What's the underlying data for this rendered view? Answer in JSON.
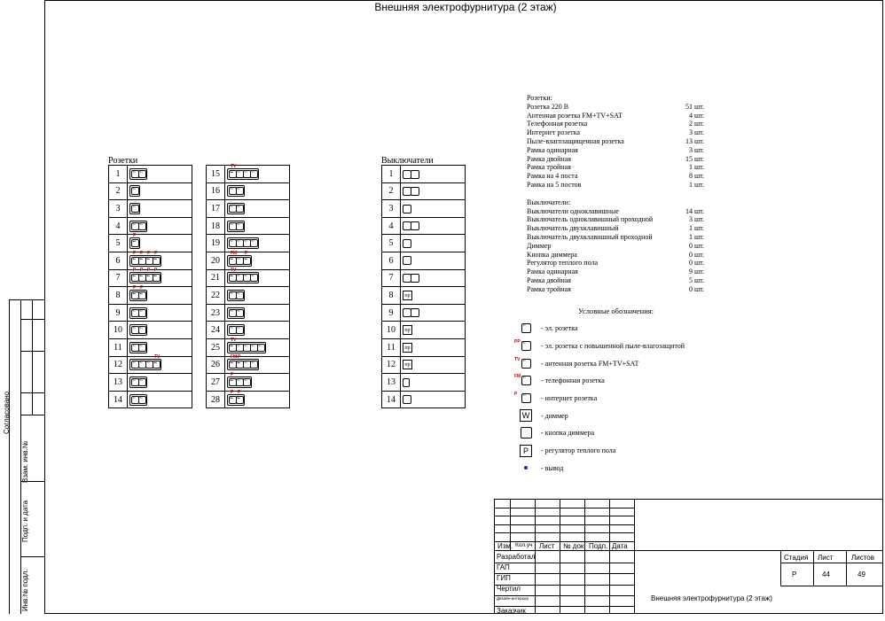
{
  "title": "Внешняя электрофурнитура (2 этаж)",
  "sockets_label": "Розетки",
  "switches_label": "Выключатели",
  "sockets_left": [
    1,
    2,
    3,
    4,
    5,
    6,
    7,
    8,
    9,
    10,
    11,
    12,
    13,
    14
  ],
  "sockets_right": [
    15,
    16,
    17,
    18,
    19,
    20,
    21,
    22,
    23,
    24,
    25,
    26,
    27,
    28
  ],
  "switches_rows": [
    1,
    2,
    3,
    4,
    5,
    6,
    7,
    8,
    9,
    10,
    11,
    12,
    13,
    14
  ],
  "marks": {
    "tv": "TV",
    "fm": "FM",
    "p": "P"
  },
  "pr_label": "пр",
  "spec": {
    "sockets_header": "Розетки:",
    "sockets": [
      {
        "name": "Розетка 220 В",
        "qty": "51 шт."
      },
      {
        "name": "Антенная розетка  FM+TV+SAT",
        "qty": "4 шт."
      },
      {
        "name": "Телефонная розетка",
        "qty": "2 шт."
      },
      {
        "name": "Интернет розетка",
        "qty": "3 шт."
      },
      {
        "name": "Пыле-влагозащищенная розетка",
        "qty": "13 шт."
      },
      {
        "name": "Рамка одинарная",
        "qty": "3 шт."
      },
      {
        "name": "Рамка двойная",
        "qty": "15 шт."
      },
      {
        "name": "Рамка тройная",
        "qty": "1 шт."
      },
      {
        "name": "Рамка на 4 поста",
        "qty": "8 шт."
      },
      {
        "name": "Рамка на 5 постов",
        "qty": "1 шт."
      }
    ],
    "switches_header": "Выключатели:",
    "switches": [
      {
        "name": "Выключатели одноклавишные",
        "qty": "14 шт."
      },
      {
        "name": "Выключатель одноклавишный  проходной",
        "qty": "3 шт."
      },
      {
        "name": "Выключатель двухклавишный",
        "qty": "1 шт."
      },
      {
        "name": "Выключатель двухклавишный проходной",
        "qty": "1 шт."
      },
      {
        "name": "Диммер",
        "qty": "0 шт."
      },
      {
        "name": "Кнопка диммера",
        "qty": "0 шт."
      },
      {
        "name": "Регулятор теплого пола",
        "qty": "0 шт."
      },
      {
        "name": "Рамка одинарная",
        "qty": "9 шт."
      },
      {
        "name": "Рамка двойная",
        "qty": "5 шт."
      },
      {
        "name": "Рамка тройная",
        "qty": "0 шт."
      }
    ]
  },
  "legend": {
    "header": "Условные обозначения:",
    "items": [
      "- эл. розетка",
      "- эл. розетка с повышенной пыле-влагозащитой",
      "- антенная розетка  FM+TV+SAT",
      "- телефонная розетка",
      "- интернет розетка",
      "- диммер",
      "- кнопка диммера",
      "- регулятор теплого пола",
      "- вывод"
    ],
    "dimmer_symbol": "W",
    "floor_symbol": "P",
    "fm_mark": "FM",
    "tv_mark": "TV"
  },
  "side": {
    "agreed": "Согласовано",
    "vzam": "Взам. инв.№",
    "podp": "Подп. и дата",
    "inv": "Инв.№ подл."
  },
  "stamp": {
    "cols": [
      "Изм.",
      "Кол.уч",
      "Лист",
      "№ док",
      "Подп.",
      "Дата"
    ],
    "rows": [
      "Разработал",
      "ГАП",
      "ГИП",
      "Чертил",
      "Дизайн-интерьер",
      "Заказчик"
    ],
    "stage_label": "Стадия",
    "sheet_label": "Лист",
    "sheets_label": "Листов",
    "stage": "Р",
    "sheet": "44",
    "sheets": "49",
    "title": "Внешняя электрофурнитура (2 этаж)"
  }
}
